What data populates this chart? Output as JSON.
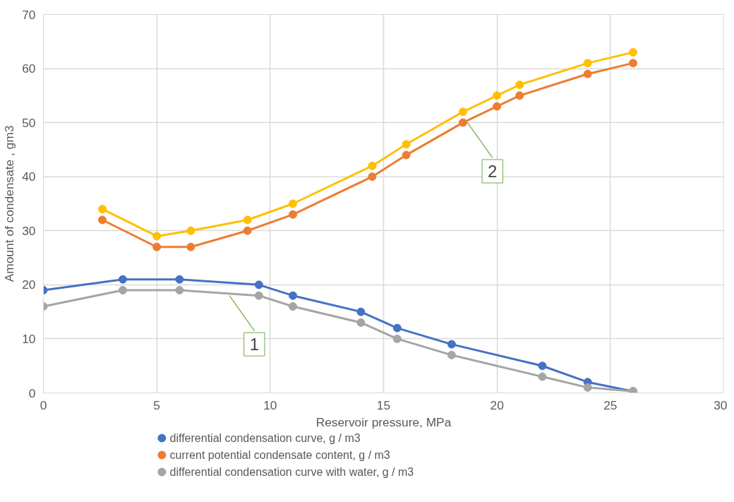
{
  "chart_data": {
    "type": "line",
    "xlabel": "Reservoir pressure, MPa",
    "ylabel": "Amount of condensate , gm3",
    "xlim": [
      0,
      30
    ],
    "xticks": [
      0,
      5,
      10,
      15,
      20,
      25,
      30
    ],
    "ylim": [
      0,
      70
    ],
    "yticks": [
      0,
      10,
      20,
      30,
      40,
      50,
      60,
      70
    ],
    "grid": true,
    "legend": "bottom",
    "marker": "circle",
    "line_style": "solid",
    "series": [
      {
        "name": "differential condensation curve, g / m3",
        "color": "#4472c4",
        "x": [
          0,
          3.5,
          6,
          9.5,
          11,
          14,
          15.6,
          18,
          22,
          24,
          26
        ],
        "values": [
          19,
          21,
          21,
          20,
          18,
          15,
          12,
          9,
          5,
          2,
          0.3
        ]
      },
      {
        "name": "current potential condensate content, g / m3",
        "color": "#ed7d31",
        "x": [
          2.6,
          5,
          6.5,
          9,
          11,
          14.5,
          16,
          18.5,
          20,
          21,
          24,
          26
        ],
        "values": [
          32,
          27,
          27,
          30,
          33,
          40,
          44,
          50,
          53,
          55,
          59,
          61
        ]
      },
      {
        "name": "differential condensation curve with water, g / m3",
        "color": "#a5a5a5",
        "x": [
          0,
          3.5,
          6,
          9.5,
          11,
          14,
          15.6,
          18,
          22,
          24,
          26
        ],
        "values": [
          16,
          19,
          19,
          18,
          16,
          13,
          10,
          7,
          3,
          1,
          0.3
        ]
      },
      {
        "color": "#ffc000",
        "x": [
          2.6,
          5,
          6.5,
          9,
          11,
          14.5,
          16,
          18.5,
          20,
          21,
          24,
          26
        ],
        "values": [
          34,
          29,
          30,
          32,
          35,
          42,
          46,
          52,
          55,
          57,
          61,
          63
        ]
      }
    ],
    "annotations": [
      {
        "text": "1",
        "x": 8.2,
        "y": 18
      },
      {
        "text": "2",
        "x": 18.7,
        "y": 50
      }
    ]
  }
}
